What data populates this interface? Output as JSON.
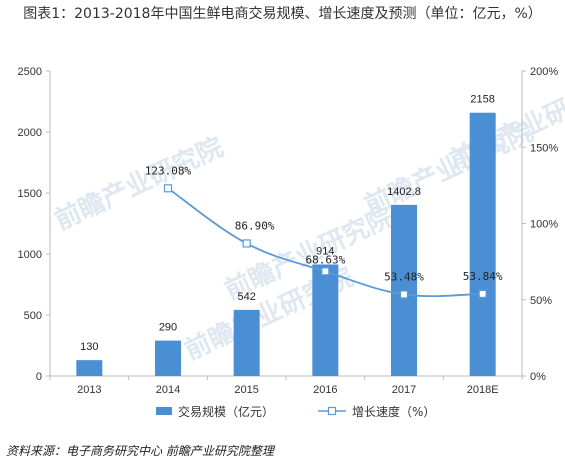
{
  "header": {
    "title": "图表1：2013-2018年中国生鲜电商交易规模、增长速度及预测（单位：亿元，%）"
  },
  "footer": {
    "source": "资料来源：电子商务研究中心  前瞻产业研究院整理"
  },
  "watermark": {
    "text": "前瞻产业研究院"
  },
  "colors": {
    "bar": "#4a8fd4",
    "line": "#5b9bd5",
    "marker_fill": "#ffffff",
    "axis": "#bbbbbb"
  },
  "chart_data": {
    "type": "bar",
    "categories": [
      "2013",
      "2014",
      "2015",
      "2016",
      "2017",
      "2018E"
    ],
    "series": [
      {
        "name": "交易规模（亿元）",
        "type": "bar",
        "axis": "left",
        "values": [
          130,
          290,
          542,
          914,
          1402.8,
          2158
        ],
        "labels": [
          "130",
          "290",
          "542",
          "914",
          "1402.8",
          "2158"
        ]
      },
      {
        "name": "增长速度（%）",
        "type": "line",
        "axis": "right",
        "values": [
          null,
          123.08,
          86.9,
          68.63,
          53.48,
          53.84
        ],
        "labels": [
          "",
          "123.08%",
          "86.90%",
          "68.63%",
          "53.48%",
          "53.84%"
        ]
      }
    ],
    "y_left": {
      "min": 0,
      "max": 2500,
      "ticks": [
        0,
        500,
        1000,
        1500,
        2000,
        2500
      ]
    },
    "y_right": {
      "min": 0,
      "max": 200,
      "ticks": [
        "0%",
        "50%",
        "100%",
        "150%",
        "200%"
      ]
    },
    "grid": false,
    "legend_position": "bottom"
  }
}
